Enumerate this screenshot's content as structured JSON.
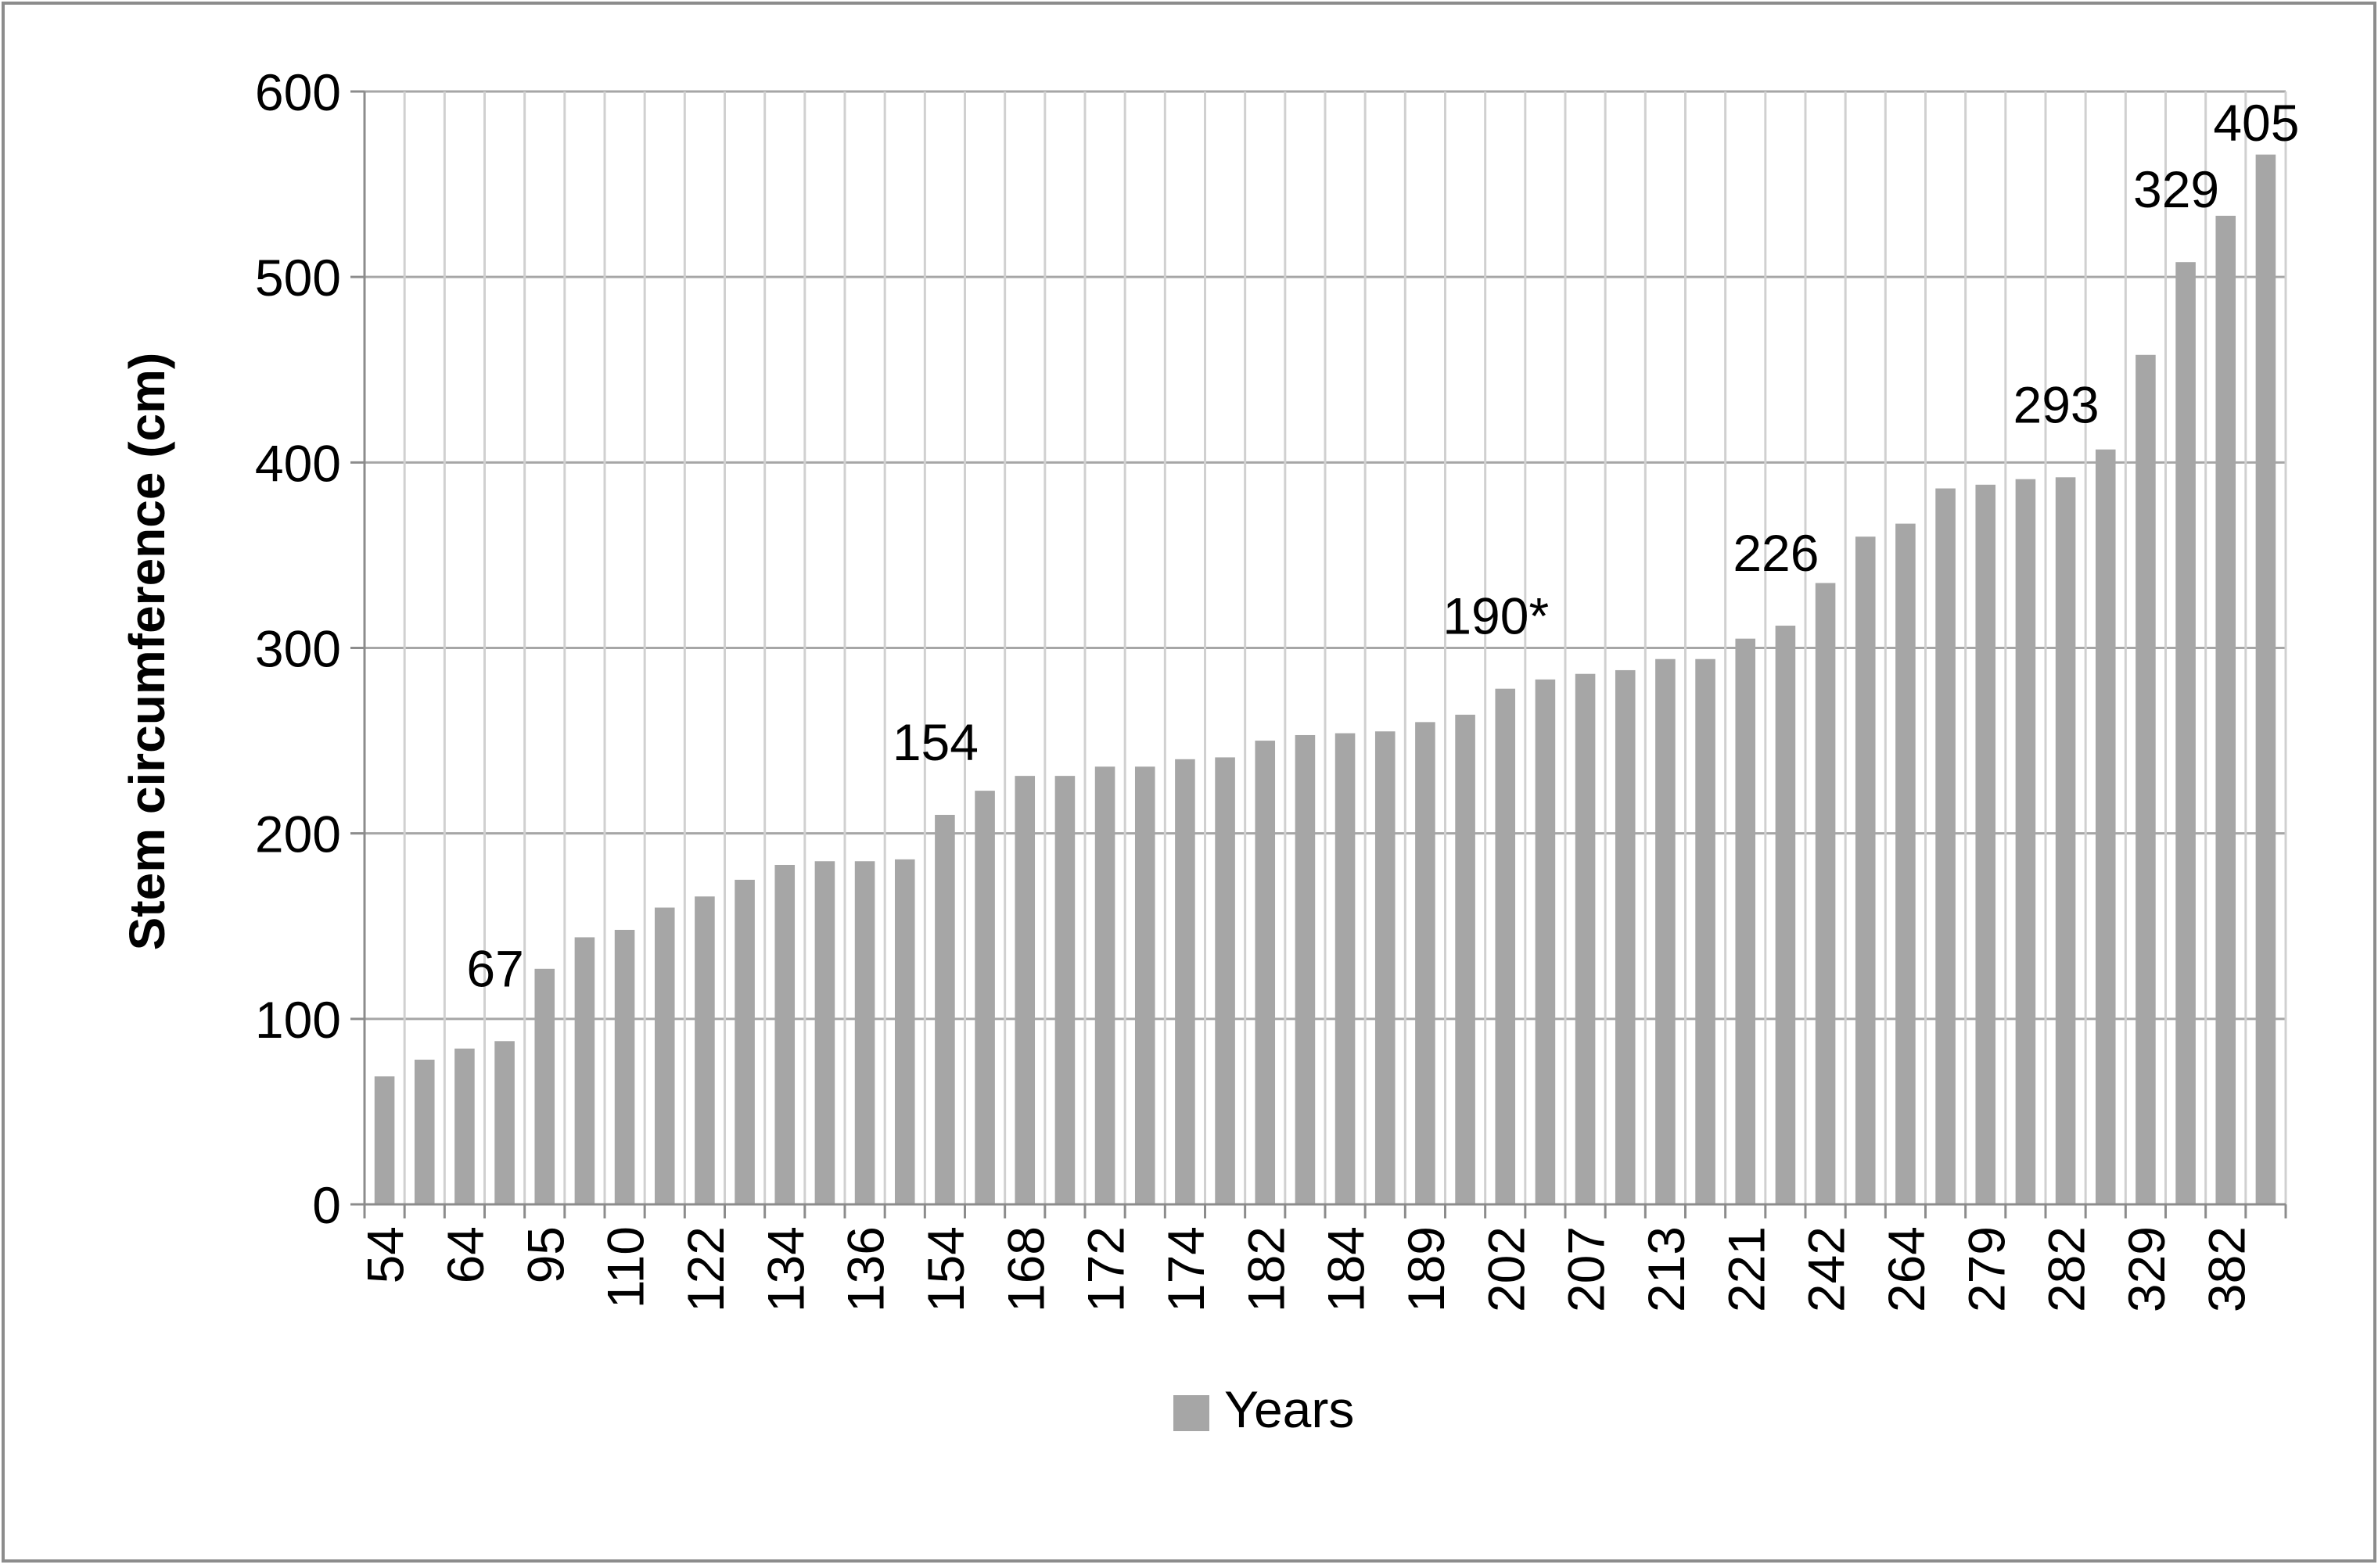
{
  "chart_data": {
    "type": "bar",
    "title": "",
    "xlabel": "",
    "ylabel": "Stem circumference (cm)",
    "ylim": [
      0,
      600
    ],
    "yticks": [
      "0",
      "100",
      "200",
      "300",
      "400",
      "500",
      "600"
    ],
    "grid": true,
    "legend": {
      "position": "bottom",
      "entries": [
        "Years"
      ]
    },
    "colors": {
      "bar": "#a6a6a6",
      "grid": "#a6a6a6",
      "axis": "#8c8c8c",
      "frame": "#8c8c8c",
      "text": "#000000"
    },
    "x_tick_labels": [
      "54",
      "64",
      "95",
      "110",
      "122",
      "134",
      "136",
      "154",
      "168",
      "172",
      "174",
      "182",
      "184",
      "189",
      "202",
      "207",
      "213",
      "221",
      "242",
      "264",
      "279",
      "282",
      "329",
      "382"
    ],
    "series": [
      {
        "name": "Years",
        "values": [
          69,
          78,
          84,
          88,
          127,
          144,
          148,
          160,
          166,
          175,
          183,
          185,
          185,
          186,
          210,
          223,
          231,
          231,
          236,
          236,
          240,
          241,
          250,
          253,
          254,
          255,
          260,
          264,
          278,
          283,
          286,
          288,
          294,
          294,
          305,
          312,
          335,
          360,
          367,
          386,
          388,
          391,
          392,
          407,
          458,
          508,
          533,
          566
        ]
      }
    ],
    "annotations": [
      {
        "text": "67",
        "bar_index": 3
      },
      {
        "text": "154",
        "bar_index": 14
      },
      {
        "text": "190*",
        "bar_index": 28
      },
      {
        "text": "226",
        "bar_index": 35
      },
      {
        "text": "293",
        "bar_index": 42
      },
      {
        "text": "329",
        "bar_index": 45
      },
      {
        "text": "405",
        "bar_index": 47
      }
    ]
  }
}
